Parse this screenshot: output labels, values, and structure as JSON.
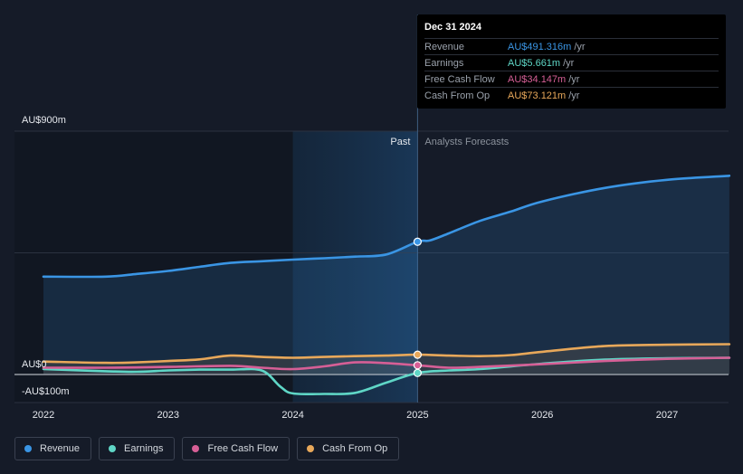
{
  "tooltip": {
    "date": "Dec 31 2024",
    "rows": [
      {
        "label": "Revenue",
        "value": "AU$491.316m",
        "unit": "/yr",
        "color": "#3a95e4"
      },
      {
        "label": "Earnings",
        "value": "AU$5.661m",
        "unit": "/yr",
        "color": "#5fd6c6"
      },
      {
        "label": "Free Cash Flow",
        "value": "AU$34.147m",
        "unit": "/yr",
        "color": "#d65f96"
      },
      {
        "label": "Cash From Op",
        "value": "AU$73.121m",
        "unit": "/yr",
        "color": "#e8a85a"
      }
    ]
  },
  "legend": [
    {
      "label": "Revenue",
      "color": "#3a95e4"
    },
    {
      "label": "Earnings",
      "color": "#5fd6c6"
    },
    {
      "label": "Free Cash Flow",
      "color": "#d65f96"
    },
    {
      "label": "Cash From Op",
      "color": "#e8a85a"
    }
  ],
  "chart_data": {
    "type": "line",
    "title": "",
    "ylabel": "",
    "y_tick_labels": [
      "AU$900m",
      "AU$0",
      "-AU$100m"
    ],
    "ylim": [
      -100,
      900
    ],
    "xlim": [
      2021.8,
      2027.5
    ],
    "x_ticks": [
      2022,
      2023,
      2024,
      2025,
      2026,
      2027
    ],
    "x_tick_labels": [
      "2022",
      "2023",
      "2024",
      "2025",
      "2026",
      "2027"
    ],
    "divider_x": 2025.0,
    "highlight_range": [
      2024.0,
      2025.0
    ],
    "region_labels": {
      "past": "Past",
      "forecast": "Analysts Forecasts"
    },
    "series": [
      {
        "name": "Revenue",
        "color": "#3a95e4",
        "area": true,
        "points": [
          [
            2022.0,
            362
          ],
          [
            2022.5,
            362
          ],
          [
            2022.75,
            372
          ],
          [
            2023.0,
            383
          ],
          [
            2023.25,
            398
          ],
          [
            2023.5,
            413
          ],
          [
            2023.75,
            419
          ],
          [
            2024.0,
            425
          ],
          [
            2024.25,
            430
          ],
          [
            2024.5,
            436
          ],
          [
            2024.75,
            444
          ],
          [
            2025.0,
            491
          ],
          [
            2025.1,
            496
          ],
          [
            2025.25,
            522
          ],
          [
            2025.5,
            568
          ],
          [
            2025.75,
            603
          ],
          [
            2026.0,
            640
          ],
          [
            2026.5,
            690
          ],
          [
            2027.0,
            720
          ],
          [
            2027.5,
            735
          ]
        ]
      },
      {
        "name": "Earnings",
        "color": "#5fd6c6",
        "area": false,
        "points": [
          [
            2022.0,
            20
          ],
          [
            2022.5,
            12
          ],
          [
            2022.75,
            10
          ],
          [
            2023.0,
            15
          ],
          [
            2023.25,
            18
          ],
          [
            2023.5,
            18
          ],
          [
            2023.75,
            15
          ],
          [
            2023.9,
            -45
          ],
          [
            2024.0,
            -70
          ],
          [
            2024.25,
            -72
          ],
          [
            2024.5,
            -68
          ],
          [
            2024.75,
            -30
          ],
          [
            2025.0,
            5.661
          ],
          [
            2025.25,
            15
          ],
          [
            2025.5,
            20
          ],
          [
            2026.0,
            40
          ],
          [
            2026.5,
            55
          ],
          [
            2027.0,
            60
          ],
          [
            2027.5,
            62
          ]
        ]
      },
      {
        "name": "Free Cash Flow",
        "color": "#d65f96",
        "area": false,
        "points": [
          [
            2022.0,
            25
          ],
          [
            2022.5,
            25
          ],
          [
            2023.0,
            28
          ],
          [
            2023.5,
            32
          ],
          [
            2023.75,
            25
          ],
          [
            2024.0,
            20
          ],
          [
            2024.25,
            30
          ],
          [
            2024.5,
            45
          ],
          [
            2024.75,
            42
          ],
          [
            2025.0,
            34.147
          ],
          [
            2025.25,
            25
          ],
          [
            2025.5,
            28
          ],
          [
            2026.0,
            38
          ],
          [
            2026.5,
            50
          ],
          [
            2027.0,
            58
          ],
          [
            2027.5,
            62
          ]
        ]
      },
      {
        "name": "Cash From Op",
        "color": "#e8a85a",
        "area": true,
        "points": [
          [
            2022.0,
            48
          ],
          [
            2022.5,
            43
          ],
          [
            2022.75,
            45
          ],
          [
            2023.0,
            50
          ],
          [
            2023.25,
            56
          ],
          [
            2023.5,
            70
          ],
          [
            2023.75,
            65
          ],
          [
            2024.0,
            62
          ],
          [
            2024.25,
            65
          ],
          [
            2024.5,
            68
          ],
          [
            2024.75,
            70
          ],
          [
            2025.0,
            73.121
          ],
          [
            2025.25,
            70
          ],
          [
            2025.5,
            68
          ],
          [
            2025.75,
            72
          ],
          [
            2026.0,
            84
          ],
          [
            2026.5,
            105
          ],
          [
            2027.0,
            110
          ],
          [
            2027.5,
            112
          ]
        ]
      }
    ],
    "markers_at_x": 2025.0
  }
}
